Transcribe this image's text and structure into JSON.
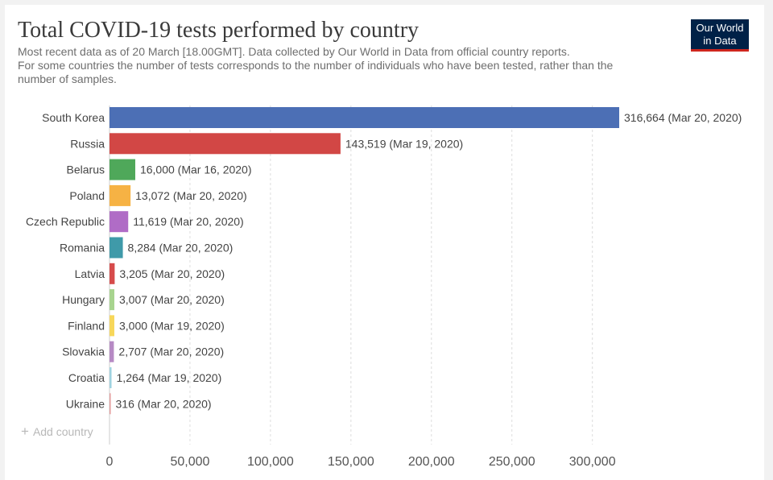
{
  "header": {
    "title": "Total COVID-19 tests performed by country",
    "subtitle_line1": "Most recent data as of 20 March [18.00GMT]. Data collected by Our World in Data from official country reports.",
    "subtitle_line2": "For some countries the number of tests corresponds to the number of individuals who have been tested, rather than the",
    "subtitle_line3": "number of samples."
  },
  "logo": {
    "line1": "Our World",
    "line2": "in Data"
  },
  "controls": {
    "add_country_label": "Add country",
    "add_icon": "plus-icon"
  },
  "colors": {
    "logo_bg": "#002147",
    "logo_accent": "#ce261e"
  },
  "chart_data": {
    "type": "bar",
    "orientation": "horizontal",
    "title": "Total COVID-19 tests performed by country",
    "categories": [
      "South Korea",
      "Russia",
      "Belarus",
      "Poland",
      "Czech Republic",
      "Romania",
      "Latvia",
      "Hungary",
      "Finland",
      "Slovakia",
      "Croatia",
      "Ukraine"
    ],
    "values": [
      316664,
      143519,
      16000,
      13072,
      11619,
      8284,
      3205,
      3007,
      3000,
      2707,
      1264,
      316
    ],
    "value_labels": [
      "316,664 (Mar 20, 2020)",
      "143,519 (Mar 19, 2020)",
      "16,000 (Mar 16, 2020)",
      "13,072 (Mar 20, 2020)",
      "11,619 (Mar 20, 2020)",
      "8,284 (Mar 20, 2020)",
      "3,205 (Mar 20, 2020)",
      "3,007 (Mar 20, 2020)",
      "3,000 (Mar 19, 2020)",
      "2,707 (Mar 20, 2020)",
      "1,264 (Mar 19, 2020)",
      "316 (Mar 20, 2020)"
    ],
    "colors": [
      "#4c6fb5",
      "#d24745",
      "#4fa85a",
      "#f6b244",
      "#b06cc6",
      "#3f9aa9",
      "#d64b4b",
      "#a8d48f",
      "#f7d75a",
      "#b68ac4",
      "#9fd3e0",
      "#e39a9a"
    ],
    "xticks": [
      0,
      50000,
      100000,
      150000,
      200000,
      250000,
      300000
    ],
    "xtick_labels": [
      "0",
      "50,000",
      "100,000",
      "150,000",
      "200,000",
      "250,000",
      "300,000"
    ],
    "xlim": [
      0,
      316664
    ],
    "grid": true
  }
}
